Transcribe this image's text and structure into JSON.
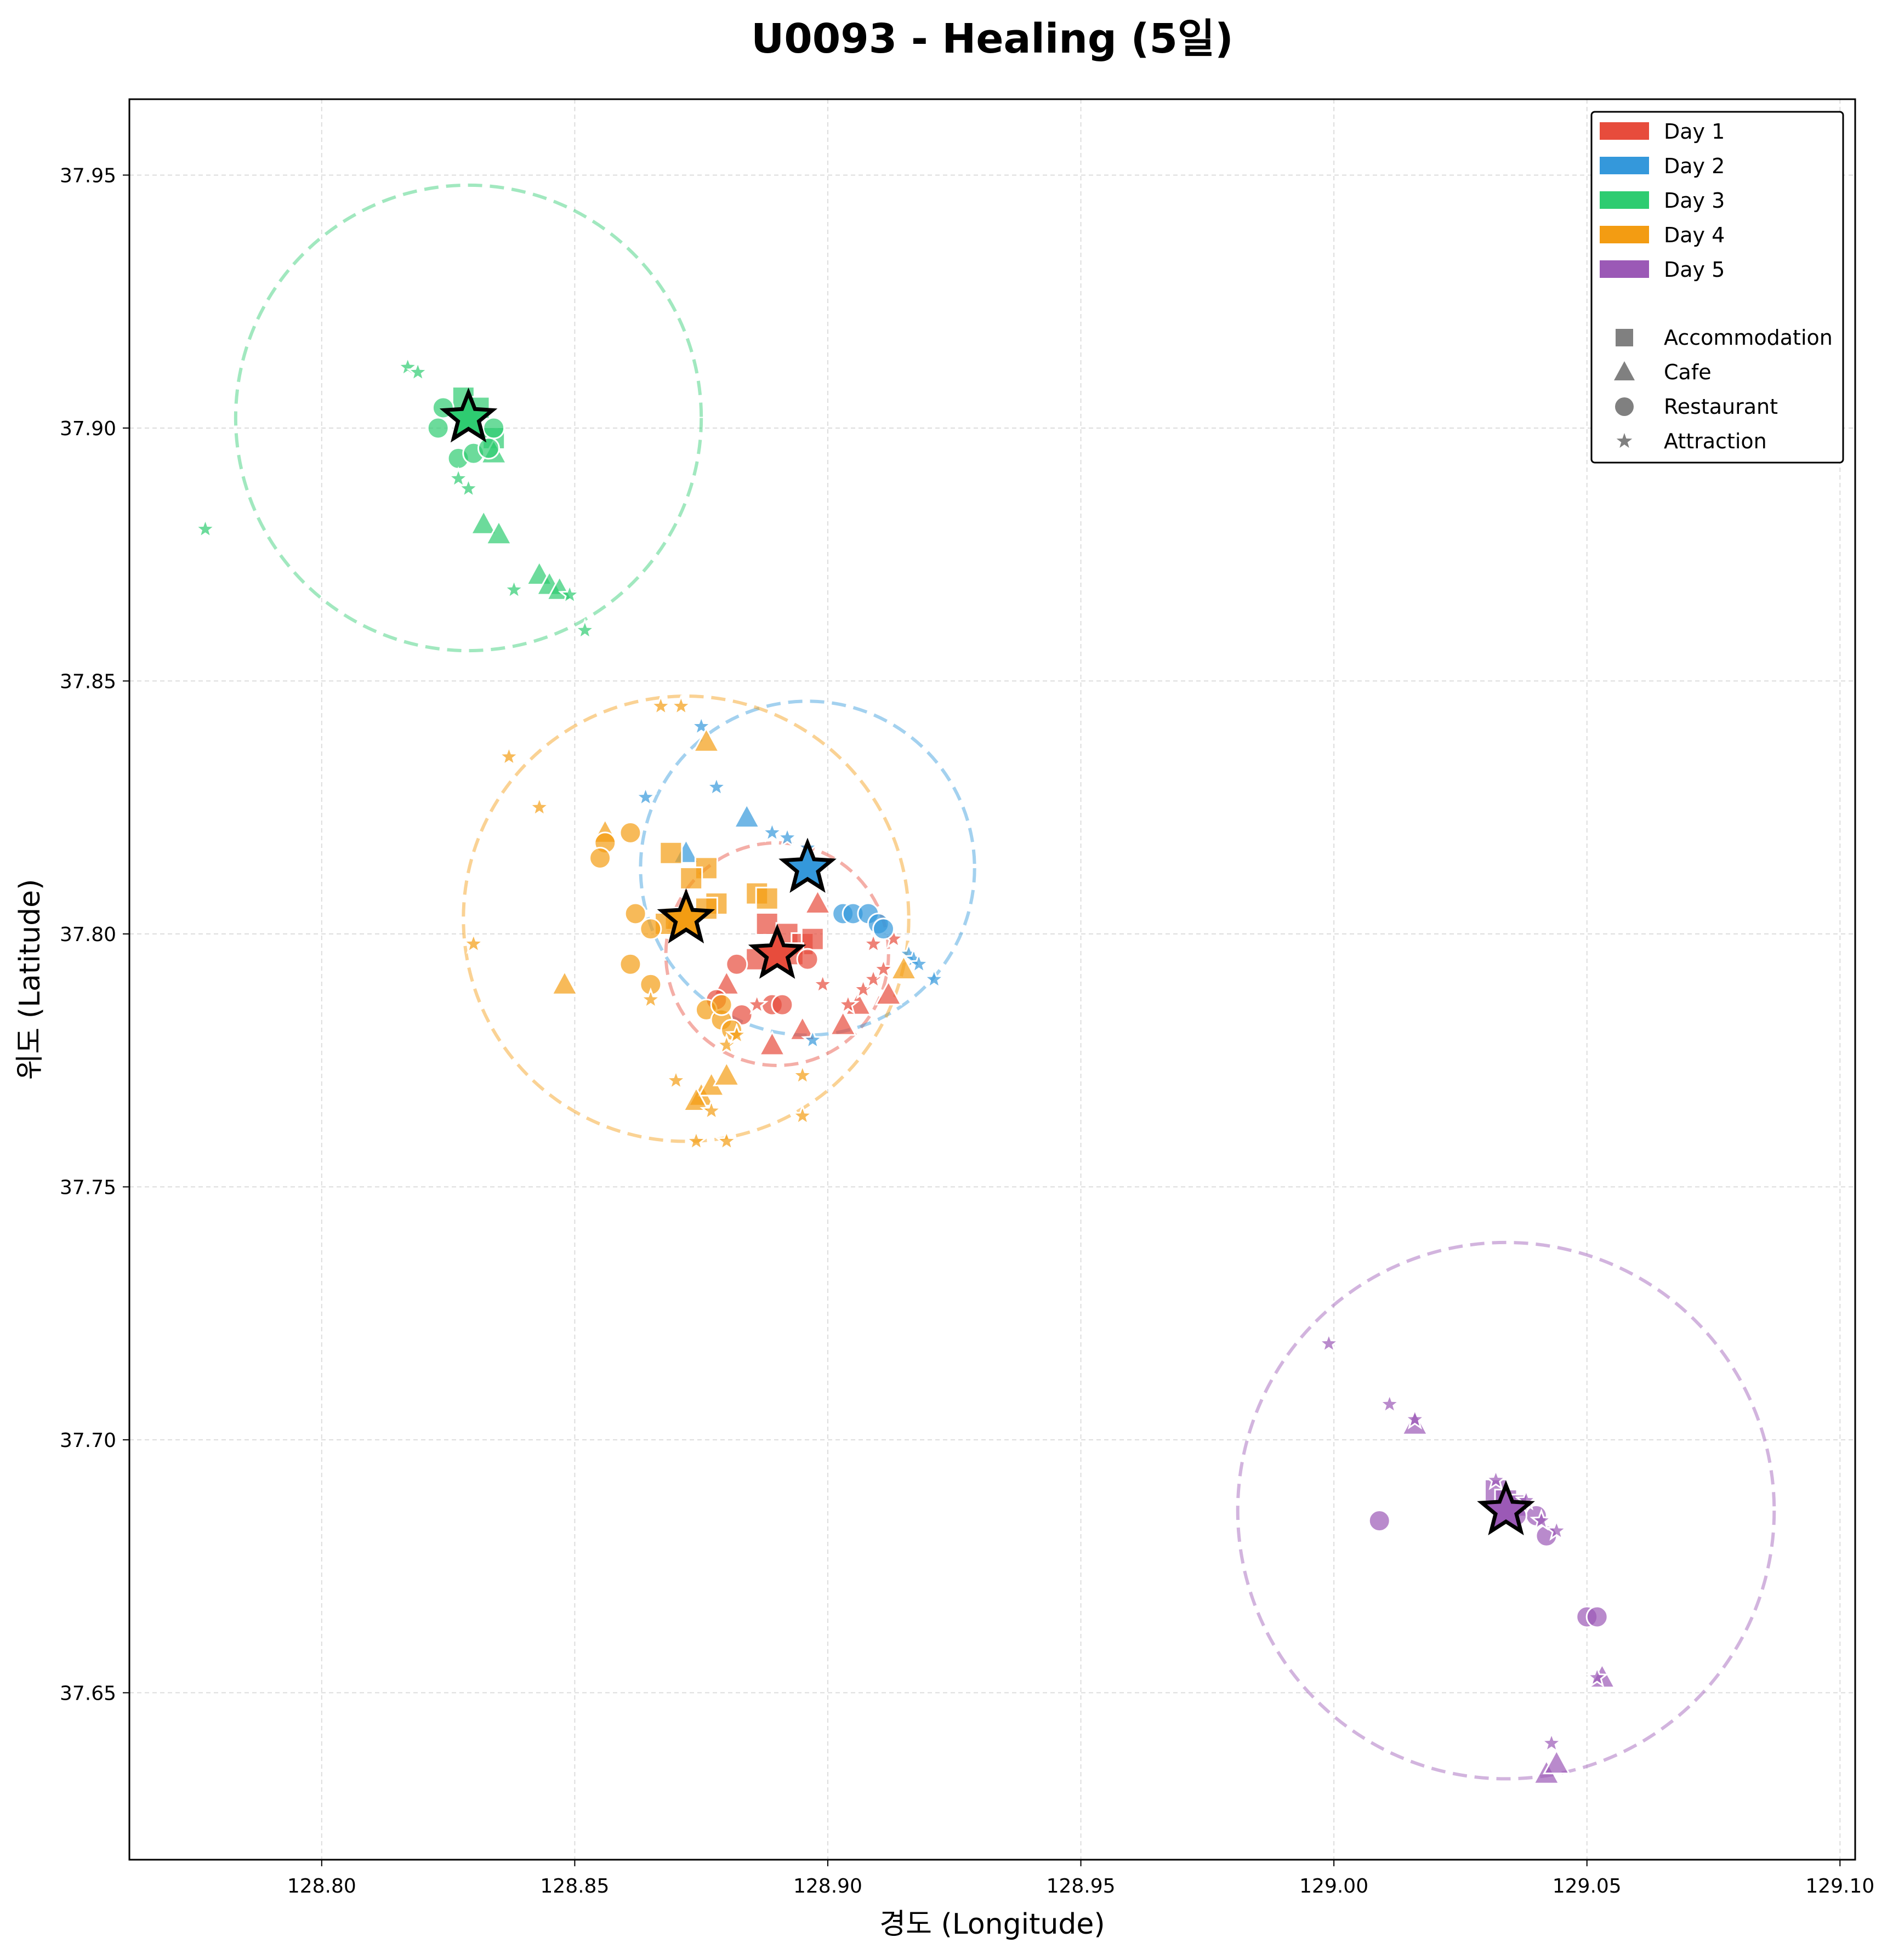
{
  "chart_data": {
    "type": "scatter",
    "title": "U0093 - Healing (5일)",
    "xlabel": "경도 (Longitude)",
    "ylabel": "위도 (Latitude)",
    "xlim": [
      128.762,
      129.103
    ],
    "ylim": [
      37.617,
      37.965
    ],
    "xticks": [
      128.8,
      128.85,
      128.9,
      128.95,
      129.0,
      129.05,
      129.1
    ],
    "yticks": [
      37.65,
      37.7,
      37.75,
      37.8,
      37.85,
      37.9,
      37.95
    ],
    "xtick_labels": [
      "128.80",
      "128.85",
      "128.90",
      "128.95",
      "129.00",
      "129.05",
      "129.10"
    ],
    "ytick_labels": [
      "37.65",
      "37.70",
      "37.75",
      "37.80",
      "37.85",
      "37.90",
      "37.95"
    ],
    "grid": true,
    "legend_position": "top-right",
    "legend": {
      "days": [
        "Day 1",
        "Day 2",
        "Day 3",
        "Day 4",
        "Day 5"
      ],
      "types": [
        "Accommodation",
        "Cafe",
        "Restaurant",
        "Attraction"
      ]
    },
    "series": [
      {
        "name": "Day 1",
        "color": "#e74c3c",
        "center": [
          128.89,
          37.796
        ],
        "radius": 0.022,
        "points": [
          [
            "accommodation",
            128.888,
            37.802
          ],
          [
            "accommodation",
            128.892,
            37.8
          ],
          [
            "accommodation",
            128.895,
            37.798
          ],
          [
            "accommodation",
            128.897,
            37.799
          ],
          [
            "accommodation",
            128.886,
            37.795
          ],
          [
            "accommodation",
            128.893,
            37.796
          ],
          [
            "cafe",
            128.88,
            37.79
          ],
          [
            "cafe",
            128.889,
            37.778
          ],
          [
            "cafe",
            128.895,
            37.781
          ],
          [
            "cafe",
            128.903,
            37.782
          ],
          [
            "cafe",
            128.906,
            37.786
          ],
          [
            "cafe",
            128.912,
            37.788
          ],
          [
            "cafe",
            128.898,
            37.806
          ],
          [
            "restaurant",
            128.882,
            37.794
          ],
          [
            "restaurant",
            128.878,
            37.787
          ],
          [
            "restaurant",
            128.883,
            37.784
          ],
          [
            "restaurant",
            128.889,
            37.786
          ],
          [
            "restaurant",
            128.891,
            37.786
          ],
          [
            "restaurant",
            128.896,
            37.795
          ],
          [
            "attraction",
            128.886,
            37.786
          ],
          [
            "attraction",
            128.899,
            37.79
          ],
          [
            "attraction",
            128.904,
            37.786
          ],
          [
            "attraction",
            128.907,
            37.789
          ],
          [
            "attraction",
            128.909,
            37.791
          ],
          [
            "attraction",
            128.911,
            37.793
          ],
          [
            "attraction",
            128.913,
            37.799
          ],
          [
            "attraction",
            128.909,
            37.798
          ]
        ]
      },
      {
        "name": "Day 2",
        "color": "#3498db",
        "center": [
          128.896,
          37.813
        ],
        "radius": 0.033,
        "points": [
          [
            "cafe",
            128.884,
            37.823
          ],
          [
            "cafe",
            128.872,
            37.816
          ],
          [
            "restaurant",
            128.903,
            37.804
          ],
          [
            "restaurant",
            128.905,
            37.804
          ],
          [
            "restaurant",
            128.908,
            37.804
          ],
          [
            "restaurant",
            128.91,
            37.802
          ],
          [
            "restaurant",
            128.911,
            37.801
          ],
          [
            "attraction",
            128.864,
            37.827
          ],
          [
            "attraction",
            128.875,
            37.841
          ],
          [
            "attraction",
            128.878,
            37.829
          ],
          [
            "attraction",
            128.889,
            37.82
          ],
          [
            "attraction",
            128.892,
            37.819
          ],
          [
            "attraction",
            128.896,
            37.817
          ],
          [
            "attraction",
            128.916,
            37.796
          ],
          [
            "attraction",
            128.917,
            37.795
          ],
          [
            "attraction",
            128.918,
            37.794
          ],
          [
            "attraction",
            128.921,
            37.791
          ],
          [
            "attraction",
            128.897,
            37.779
          ]
        ]
      },
      {
        "name": "Day 3",
        "color": "#2ecc71",
        "center": [
          128.829,
          37.902
        ],
        "radius": 0.046,
        "points": [
          [
            "accommodation",
            128.828,
            37.906
          ],
          [
            "accommodation",
            128.831,
            37.904
          ],
          [
            "accommodation",
            128.834,
            37.898
          ],
          [
            "cafe",
            128.832,
            37.881
          ],
          [
            "cafe",
            128.835,
            37.879
          ],
          [
            "cafe",
            128.843,
            37.871
          ],
          [
            "cafe",
            128.845,
            37.869
          ],
          [
            "cafe",
            128.847,
            37.868
          ],
          [
            "cafe",
            128.834,
            37.895
          ],
          [
            "restaurant",
            128.824,
            37.904
          ],
          [
            "restaurant",
            128.823,
            37.9
          ],
          [
            "restaurant",
            128.827,
            37.894
          ],
          [
            "restaurant",
            128.83,
            37.895
          ],
          [
            "restaurant",
            128.833,
            37.896
          ],
          [
            "restaurant",
            128.834,
            37.9
          ],
          [
            "attraction",
            128.777,
            37.88
          ],
          [
            "attraction",
            128.817,
            37.912
          ],
          [
            "attraction",
            128.819,
            37.911
          ],
          [
            "attraction",
            128.827,
            37.89
          ],
          [
            "attraction",
            128.829,
            37.888
          ],
          [
            "attraction",
            128.849,
            37.867
          ],
          [
            "attraction",
            128.852,
            37.86
          ],
          [
            "attraction",
            128.838,
            37.868
          ]
        ]
      },
      {
        "name": "Day 4",
        "color": "#f39c12",
        "center": [
          128.872,
          37.803
        ],
        "radius": 0.044,
        "points": [
          [
            "accommodation",
            128.869,
            37.816
          ],
          [
            "accommodation",
            128.876,
            37.813
          ],
          [
            "accommodation",
            128.873,
            37.811
          ],
          [
            "accommodation",
            128.878,
            37.806
          ],
          [
            "accommodation",
            128.876,
            37.805
          ],
          [
            "accommodation",
            128.886,
            37.808
          ],
          [
            "accommodation",
            128.888,
            37.807
          ],
          [
            "accommodation",
            128.87,
            37.803
          ],
          [
            "accommodation",
            128.868,
            37.802
          ],
          [
            "cafe",
            128.848,
            37.79
          ],
          [
            "cafe",
            128.876,
            37.838
          ],
          [
            "cafe",
            128.875,
            37.768
          ],
          [
            "cafe",
            128.877,
            37.77
          ],
          [
            "cafe",
            128.88,
            37.772
          ],
          [
            "cafe",
            128.874,
            37.767
          ],
          [
            "cafe",
            128.915,
            37.793
          ],
          [
            "cafe",
            128.856,
            37.82
          ],
          [
            "restaurant",
            128.856,
            37.818
          ],
          [
            "restaurant",
            128.855,
            37.815
          ],
          [
            "restaurant",
            128.861,
            37.82
          ],
          [
            "restaurant",
            128.862,
            37.804
          ],
          [
            "restaurant",
            128.865,
            37.801
          ],
          [
            "restaurant",
            128.861,
            37.794
          ],
          [
            "restaurant",
            128.865,
            37.79
          ],
          [
            "restaurant",
            128.876,
            37.785
          ],
          [
            "restaurant",
            128.879,
            37.783
          ],
          [
            "restaurant",
            128.881,
            37.781
          ],
          [
            "restaurant",
            128.879,
            37.786
          ],
          [
            "attraction",
            128.837,
            37.835
          ],
          [
            "attraction",
            128.843,
            37.825
          ],
          [
            "attraction",
            128.867,
            37.845
          ],
          [
            "attraction",
            128.871,
            37.845
          ],
          [
            "attraction",
            128.83,
            37.798
          ],
          [
            "attraction",
            128.865,
            37.787
          ],
          [
            "attraction",
            128.87,
            37.771
          ],
          [
            "attraction",
            128.874,
            37.759
          ],
          [
            "attraction",
            128.877,
            37.765
          ],
          [
            "attraction",
            128.88,
            37.759
          ],
          [
            "attraction",
            128.88,
            37.778
          ],
          [
            "attraction",
            128.882,
            37.78
          ],
          [
            "attraction",
            128.895,
            37.772
          ],
          [
            "attraction",
            128.895,
            37.764
          ]
        ]
      },
      {
        "name": "Day 5",
        "color": "#9b59b6",
        "center": [
          129.034,
          37.686
        ],
        "radius": 0.053,
        "points": [
          [
            "accommodation",
            129.032,
            37.69
          ],
          [
            "accommodation",
            129.034,
            37.688
          ],
          [
            "accommodation",
            129.036,
            37.687
          ],
          [
            "cafe",
            129.016,
            37.703
          ],
          [
            "cafe",
            129.042,
            37.634
          ],
          [
            "cafe",
            129.044,
            37.636
          ],
          [
            "cafe",
            129.053,
            37.653
          ],
          [
            "restaurant",
            129.009,
            37.684
          ],
          [
            "restaurant",
            129.04,
            37.685
          ],
          [
            "restaurant",
            129.042,
            37.681
          ],
          [
            "restaurant",
            129.05,
            37.665
          ],
          [
            "restaurant",
            129.052,
            37.665
          ],
          [
            "restaurant",
            129.036,
            37.685
          ],
          [
            "attraction",
            128.999,
            37.719
          ],
          [
            "attraction",
            129.011,
            37.707
          ],
          [
            "attraction",
            129.016,
            37.704
          ],
          [
            "attraction",
            129.043,
            37.64
          ],
          [
            "attraction",
            129.052,
            37.653
          ],
          [
            "attraction",
            129.044,
            37.682
          ],
          [
            "attraction",
            129.041,
            37.684
          ],
          [
            "attraction",
            129.032,
            37.692
          ],
          [
            "attraction",
            129.038,
            37.688
          ]
        ]
      }
    ]
  }
}
